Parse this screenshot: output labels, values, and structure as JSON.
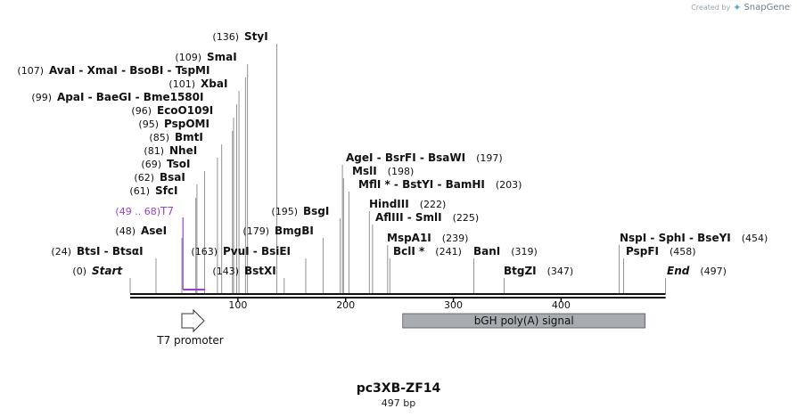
{
  "brand": {
    "created_by": "Created by",
    "logo": "SnapGene"
  },
  "map": {
    "name": "pc3XB-ZF14",
    "length_label": "497 bp",
    "total_bp": 497
  },
  "ticks": [
    100,
    200,
    300,
    400
  ],
  "sites": [
    {
      "pos": 0,
      "label": "(0)",
      "name": "Start",
      "italic": true
    },
    {
      "pos": 24,
      "label": "(24)",
      "name": "BtsI - BtsαI"
    },
    {
      "pos": 48,
      "label": "(48)",
      "name": "AseI"
    },
    {
      "pos": 61,
      "label": "(61)",
      "name": "SfcI"
    },
    {
      "pos": 62,
      "label": "(62)",
      "name": "BsaI"
    },
    {
      "pos": 69,
      "label": "(69)",
      "name": "TsoI"
    },
    {
      "pos": 81,
      "label": "(81)",
      "name": "NheI"
    },
    {
      "pos": 85,
      "label": "(85)",
      "name": "BmtI"
    },
    {
      "pos": 95,
      "label": "(95)",
      "name": "PspOMI"
    },
    {
      "pos": 96,
      "label": "(96)",
      "name": "EcoO109I"
    },
    {
      "pos": 99,
      "label": "(99)",
      "name": "ApaI - BaeGI - Bme1580I"
    },
    {
      "pos": 101,
      "label": "(101)",
      "name": "XbaI"
    },
    {
      "pos": 107,
      "label": "(107)",
      "name": "AvaI - XmaI - BsoBI - TspMI"
    },
    {
      "pos": 109,
      "label": "(109)",
      "name": "SmaI"
    },
    {
      "pos": 136,
      "label": "(136)",
      "name": "StyI"
    },
    {
      "pos": 143,
      "label": "(143)",
      "name": "BstXI"
    },
    {
      "pos": 163,
      "label": "(163)",
      "name": "PvuI - BsiEI"
    },
    {
      "pos": 179,
      "label": "(179)",
      "name": "BmgBI"
    },
    {
      "pos": 195,
      "label": "(195)",
      "name": "BsgI"
    },
    {
      "pos": 197,
      "label": "(197)",
      "name": "AgeI - BsrFI - BsaWI"
    },
    {
      "pos": 198,
      "label": "(198)",
      "name": "MslI"
    },
    {
      "pos": 203,
      "label": "(203)",
      "name": "MflI * - BstYI - BamHI"
    },
    {
      "pos": 222,
      "label": "(222)",
      "name": "HindIII"
    },
    {
      "pos": 225,
      "label": "(225)",
      "name": "AflIII - SmlI"
    },
    {
      "pos": 239,
      "label": "(239)",
      "name": "MspA1I"
    },
    {
      "pos": 241,
      "label": "(241)",
      "name": "BclI *"
    },
    {
      "pos": 319,
      "label": "(319)",
      "name": "BanI"
    },
    {
      "pos": 347,
      "label": "(347)",
      "name": "BtgZI"
    },
    {
      "pos": 454,
      "label": "(454)",
      "name": "NspI - SphI - BseYI"
    },
    {
      "pos": 458,
      "label": "(458)",
      "name": "PspFI"
    },
    {
      "pos": 497,
      "label": "(497)",
      "name": "End",
      "italic": true
    }
  ],
  "primer": {
    "label": "(49 .. 68)",
    "name": "T7",
    "start": 49,
    "end": 68,
    "color": "#9b3fd1"
  },
  "features": [
    {
      "name": "T7 promoter",
      "start": 48,
      "end": 67,
      "type": "arrow"
    },
    {
      "name": "bGH poly(A) signal",
      "start": 253,
      "end": 478,
      "type": "box",
      "color": "#a8acb1"
    }
  ]
}
